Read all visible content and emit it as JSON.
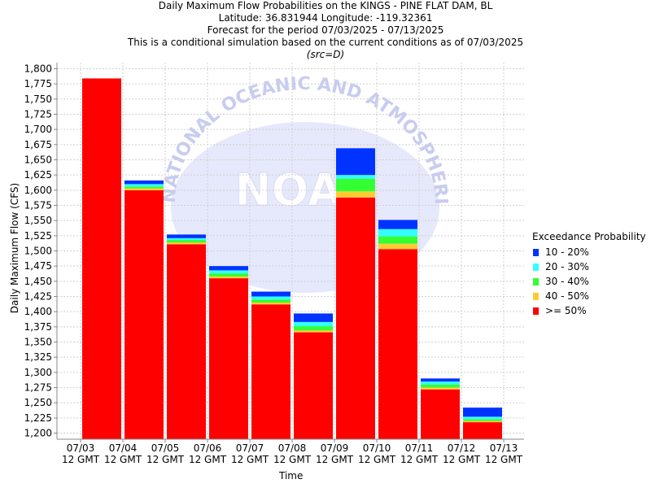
{
  "titles": {
    "line1": "Daily Maximum Flow Probabilities on the KINGS - PINE FLAT DAM, BL",
    "line2": "Latitude: 36.831944 Longitude: -119.32361",
    "line3": "Forecast for the period 07/03/2025 - 07/13/2025",
    "line4": "This is a conditional simulation based on the current conditions as of 07/03/2025",
    "line5": "(src=D)"
  },
  "watermark": {
    "text": "NOAA",
    "arc_text": "NATIONAL OCEANIC AND ATMOSPHERIC ADMINISTRATION",
    "color": "#c8ccf0"
  },
  "legend": {
    "title": "Exceedance Probability",
    "placement": "right",
    "items": [
      {
        "label": "10 - 20%",
        "color": "#0033ff"
      },
      {
        "label": "20 - 30%",
        "color": "#33ffff"
      },
      {
        "label": "30 - 40%",
        "color": "#33ff33"
      },
      {
        "label": "40 - 50%",
        "color": "#ffcc33"
      },
      {
        "label": ">= 50%",
        "color": "#ff0000"
      }
    ]
  },
  "chart_data": {
    "type": "bar",
    "stacked": true,
    "xlabel": "Time",
    "ylabel": "Daily Maximum Flow (CFS)",
    "ylim": [
      1190,
      1810
    ],
    "yticks": [
      1200,
      1225,
      1250,
      1275,
      1300,
      1325,
      1350,
      1375,
      1400,
      1425,
      1450,
      1475,
      1500,
      1525,
      1550,
      1575,
      1600,
      1625,
      1650,
      1675,
      1700,
      1725,
      1750,
      1775,
      1800
    ],
    "xticks": [
      {
        "line1": "07/03",
        "line2": "12 GMT"
      },
      {
        "line1": "07/04",
        "line2": "12 GMT"
      },
      {
        "line1": "07/05",
        "line2": "12 GMT"
      },
      {
        "line1": "07/06",
        "line2": "12 GMT"
      },
      {
        "line1": "07/07",
        "line2": "12 GMT"
      },
      {
        "line1": "07/08",
        "line2": "12 GMT"
      },
      {
        "line1": "07/09",
        "line2": "12 GMT"
      },
      {
        "line1": "07/10",
        "line2": "12 GMT"
      },
      {
        "line1": "07/11",
        "line2": "12 GMT"
      },
      {
        "line1": "07/12",
        "line2": "12 GMT"
      },
      {
        "line1": "07/13",
        "line2": "12 GMT"
      }
    ],
    "grid": true,
    "bars": [
      {
        "p50": 1784,
        "p40": 1784,
        "p30": 1784,
        "p20": 1784,
        "p10": 1784
      },
      {
        "p50": 1600,
        "p40": 1603,
        "p30": 1606,
        "p20": 1610,
        "p10": 1616
      },
      {
        "p50": 1511,
        "p40": 1514,
        "p30": 1518,
        "p20": 1521,
        "p10": 1527
      },
      {
        "p50": 1455,
        "p40": 1458,
        "p30": 1463,
        "p20": 1468,
        "p10": 1475
      },
      {
        "p50": 1412,
        "p40": 1415,
        "p30": 1420,
        "p20": 1425,
        "p10": 1433
      },
      {
        "p50": 1366,
        "p40": 1369,
        "p30": 1376,
        "p20": 1383,
        "p10": 1397
      },
      {
        "p50": 1588,
        "p40": 1598,
        "p30": 1619,
        "p20": 1625,
        "p10": 1669
      },
      {
        "p50": 1503,
        "p40": 1512,
        "p30": 1524,
        "p20": 1536,
        "p10": 1551
      },
      {
        "p50": 1272,
        "p40": 1275,
        "p30": 1280,
        "p20": 1285,
        "p10": 1290
      },
      {
        "p50": 1218,
        "p40": 1220,
        "p30": 1223,
        "p20": 1227,
        "p10": 1242
      }
    ]
  }
}
